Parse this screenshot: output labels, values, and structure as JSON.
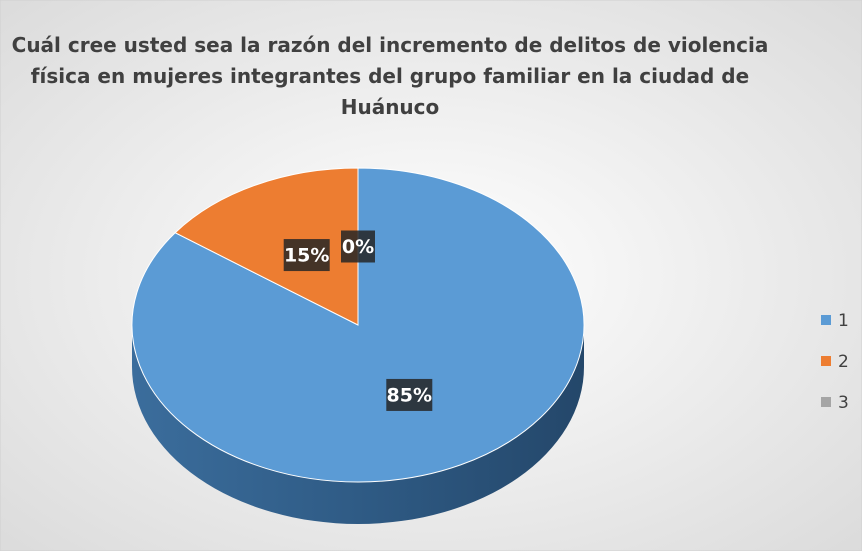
{
  "chart_data": {
    "type": "pie",
    "title": "Cuál cree usted sea la razón del incremento de delitos de violencia física en mujeres integrantes del grupo familiar en la ciudad de Huánuco",
    "categories": [
      "1",
      "2",
      "3"
    ],
    "values": [
      85,
      15,
      0
    ],
    "value_labels": [
      "85%",
      "15%",
      "0%"
    ],
    "colors": [
      "#5b9bd5",
      "#ed7d31",
      "#a5a5a5"
    ],
    "legend": "right"
  }
}
